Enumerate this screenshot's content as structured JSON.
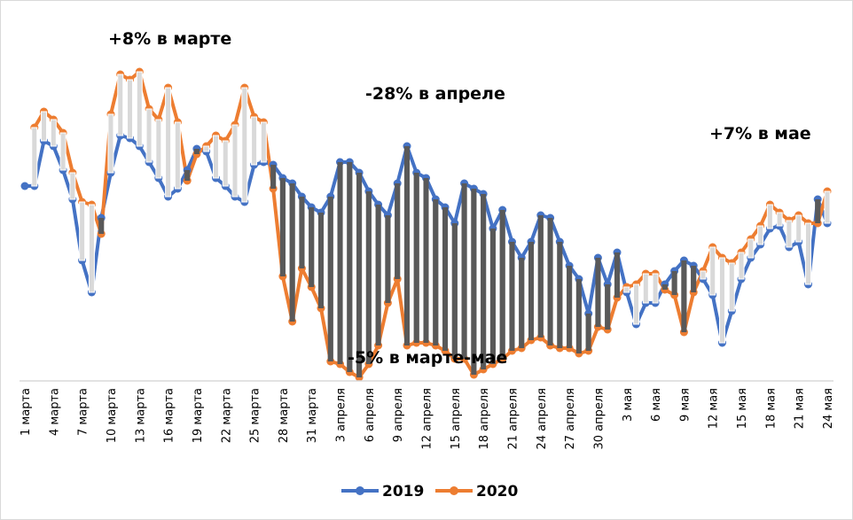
{
  "chart_data": {
    "type": "line",
    "title": "",
    "xlabel": "",
    "ylabel": "",
    "grid": false,
    "legend_position": "bottom",
    "x": [
      "1 марта",
      "2 марта",
      "3 марта",
      "4 марта",
      "5 марта",
      "6 марта",
      "7 марта",
      "8 марта",
      "9 марта",
      "10 марта",
      "11 марта",
      "12 марта",
      "13 марта",
      "14 марта",
      "15 марта",
      "16 марта",
      "17 марта",
      "18 марта",
      "19 марта",
      "20 марта",
      "21 марта",
      "22 марта",
      "23 марта",
      "24 марта",
      "25 марта",
      "26 марта",
      "27 марта",
      "28 марта",
      "29 марта",
      "30 марта",
      "31 марта",
      "1 апреля",
      "2 апреля",
      "3 апреля",
      "4 апреля",
      "5 апреля",
      "6 апреля",
      "7 апреля",
      "8 апреля",
      "9 апреля",
      "10 апреля",
      "11 апреля",
      "12 апреля",
      "13 апреля",
      "14 апреля",
      "15 апреля",
      "16 апреля",
      "17 апреля",
      "18 апреля",
      "19 апреля",
      "20 апреля",
      "21 апреля",
      "22 апреля",
      "23 апреля",
      "24 апреля",
      "25 апреля",
      "26 апреля",
      "27 апреля",
      "28 апреля",
      "29 апреля",
      "30 апреля",
      "1 мая",
      "2 мая",
      "3 мая",
      "4 мая",
      "5 мая",
      "6 мая",
      "7 мая",
      "8 мая",
      "9 мая",
      "10 мая",
      "11 мая",
      "12 мая",
      "13 мая",
      "14 мая",
      "15 мая",
      "16 мая",
      "17 мая",
      "18 мая",
      "19 мая",
      "20 мая",
      "21 мая",
      "22 мая",
      "23 мая",
      "24 мая"
    ],
    "tick_labels": [
      "1 марта",
      "4 марта",
      "7 марта",
      "10 марта",
      "13 марта",
      "16 марта",
      "19 марта",
      "22 марта",
      "25 марта",
      "28 марта",
      "31 марта",
      "3 апреля",
      "6 апреля",
      "9 апреля",
      "12 апреля",
      "15 апреля",
      "18 апреля",
      "21 апреля",
      "24 апреля",
      "27 апреля",
      "30 апреля",
      "3 мая",
      "6 мая",
      "9 мая",
      "12 мая",
      "15 мая",
      "18 мая",
      "21 мая",
      "24 мая"
    ],
    "ylim": [
      40,
      150
    ],
    "series": [
      {
        "name": "2019",
        "color": "#4472C4",
        "values": [
          100,
          100,
          117,
          115,
          106,
          95,
          72,
          60,
          88,
          105,
          119,
          118,
          115,
          109,
          103,
          96,
          99,
          106,
          114,
          113,
          103,
          100,
          96,
          94,
          108,
          109,
          108,
          103,
          101,
          96,
          92,
          90,
          96,
          109,
          109,
          105,
          98,
          93,
          89,
          101,
          115,
          105,
          103,
          95,
          92,
          86,
          101,
          99,
          97,
          84,
          91,
          79,
          73,
          79,
          89,
          88,
          79,
          70,
          65,
          52,
          73,
          63,
          75,
          60,
          48,
          56,
          56,
          63,
          68,
          72,
          70,
          65,
          59,
          41,
          53,
          65,
          73,
          78,
          84,
          85,
          77,
          79,
          63,
          95,
          86
        ]
      },
      {
        "name": "2020",
        "color": "#ED7D31",
        "values": [
          null,
          122,
          128,
          125,
          120,
          105,
          94,
          93,
          82,
          127,
          142,
          140,
          143,
          129,
          125,
          137,
          124,
          102,
          112,
          115,
          119,
          117,
          123,
          137,
          126,
          124,
          99,
          66,
          49,
          69,
          62,
          54,
          34,
          33,
          30,
          28,
          33,
          40,
          56,
          65,
          40,
          41,
          41,
          40,
          38,
          35,
          35,
          29,
          31,
          33,
          35,
          38,
          39,
          42,
          43,
          40,
          39,
          39,
          37,
          38,
          47,
          46,
          58,
          62,
          63,
          67,
          67,
          61,
          59,
          45,
          60,
          68,
          77,
          73,
          71,
          75,
          80,
          85,
          93,
          90,
          87,
          89,
          86,
          86,
          98
        ]
      }
    ],
    "annotations": [
      {
        "text": "+8% в марте"
      },
      {
        "text": "-28% в апреле"
      },
      {
        "text": "+7% в мае"
      },
      {
        "text": "-5% в марте-мае"
      }
    ]
  },
  "legend": [
    {
      "label": "2019",
      "color": "#4472C4"
    },
    {
      "label": "2020",
      "color": "#ED7D31"
    }
  ],
  "colors": {
    "bar_up": "#D9D9D9",
    "bar_down": "#595959",
    "axis": "#D9D9D9"
  }
}
